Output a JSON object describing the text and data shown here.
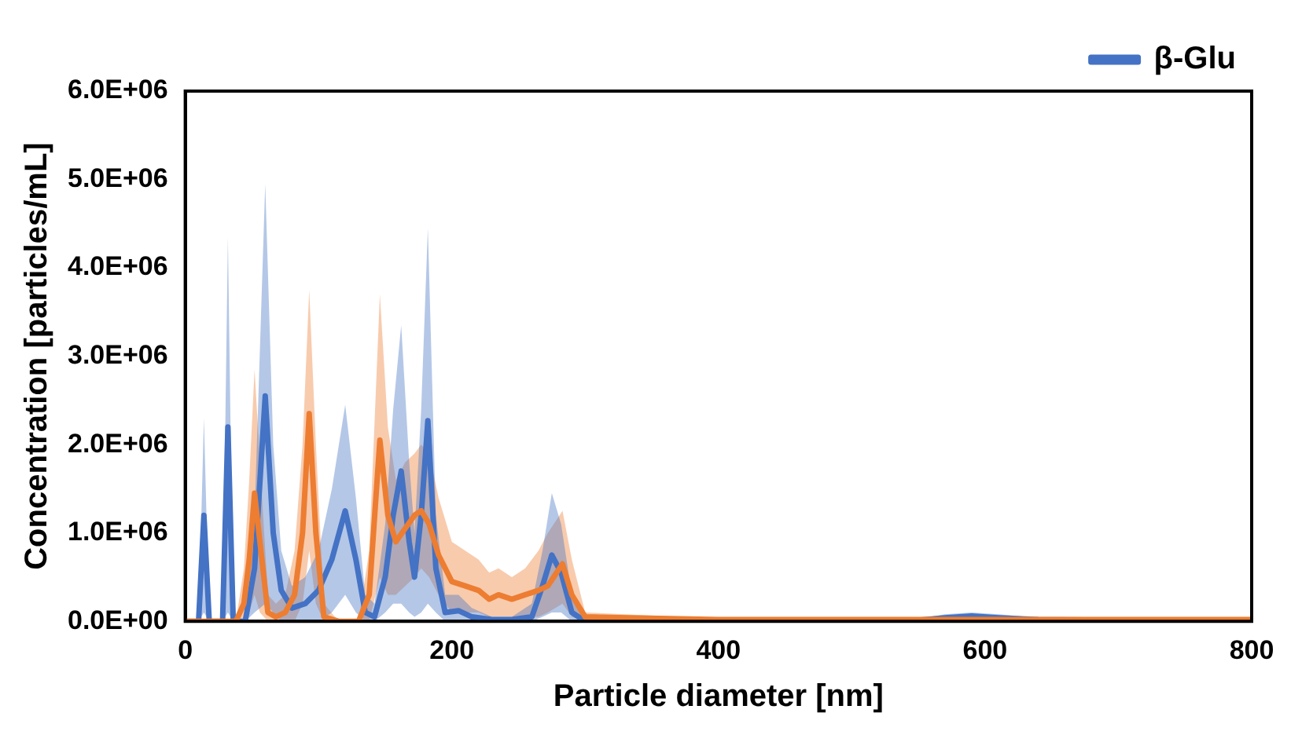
{
  "chart_data": {
    "type": "line",
    "xlabel": "Particle diameter [nm]",
    "ylabel": "Concentration [particles/mL]",
    "xlim": [
      0,
      800
    ],
    "xticks": [
      0,
      200,
      400,
      600,
      800
    ],
    "ylim": [
      0,
      6000000
    ],
    "yticks": [
      {
        "value": 0,
        "label": "0.0E+00"
      },
      {
        "value": 1000000,
        "label": "1.0E+06"
      },
      {
        "value": 2000000,
        "label": "2.0E+06"
      },
      {
        "value": 3000000,
        "label": "3.0E+06"
      },
      {
        "value": 4000000,
        "label": "4.0E+06"
      },
      {
        "value": 5000000,
        "label": "5.0E+06"
      },
      {
        "value": 6000000,
        "label": "6.0E+06"
      }
    ],
    "grid": false,
    "legend": "top right",
    "marker": "none",
    "line_style": "solid",
    "series": [
      {
        "name": "β-Glu",
        "color": "#4472c4",
        "x": [
          0,
          10,
          14,
          18,
          28,
          32,
          36,
          45,
          52,
          60,
          66,
          72,
          80,
          90,
          100,
          110,
          120,
          128,
          135,
          142,
          150,
          156,
          162,
          168,
          172,
          177,
          182,
          188,
          195,
          205,
          215,
          230,
          245,
          260,
          268,
          275,
          282,
          290,
          300,
          400,
          540,
          570,
          590,
          610,
          640,
          800
        ],
        "values": [
          0,
          0,
          1200000,
          0,
          0,
          2200000,
          0,
          0,
          600000,
          2550000,
          1000000,
          350000,
          150000,
          200000,
          350000,
          700000,
          1250000,
          700000,
          100000,
          50000,
          500000,
          1200000,
          1700000,
          900000,
          500000,
          1200000,
          2270000,
          600000,
          100000,
          120000,
          50000,
          20000,
          20000,
          50000,
          400000,
          750000,
          550000,
          100000,
          0,
          0,
          0,
          40000,
          60000,
          40000,
          20000,
          0
        ],
        "upper": [
          0,
          0,
          2300000,
          0,
          0,
          4350000,
          0,
          0,
          1200000,
          4950000,
          2000000,
          800000,
          400000,
          500000,
          800000,
          1500000,
          2450000,
          1400000,
          300000,
          200000,
          1100000,
          2400000,
          3350000,
          1800000,
          1000000,
          2400000,
          4450000,
          1200000,
          300000,
          300000,
          150000,
          50000,
          50000,
          200000,
          800000,
          1450000,
          1100000,
          300000,
          0,
          0,
          0,
          80000,
          100000,
          80000,
          40000,
          0
        ],
        "lower": [
          0,
          0,
          100000,
          0,
          0,
          100000,
          0,
          0,
          100000,
          200000,
          100000,
          0,
          0,
          0,
          0,
          100000,
          300000,
          100000,
          0,
          0,
          100000,
          200000,
          200000,
          100000,
          50000,
          100000,
          200000,
          100000,
          0,
          0,
          0,
          0,
          0,
          0,
          50000,
          100000,
          100000,
          0,
          0,
          0,
          0,
          0,
          20000,
          0,
          0,
          0
        ]
      },
      {
        "color": "#ed7d31",
        "x": [
          0,
          38,
          44,
          48,
          52,
          56,
          62,
          68,
          75,
          82,
          88,
          93,
          98,
          104,
          115,
          130,
          138,
          146,
          152,
          158,
          165,
          172,
          177,
          183,
          190,
          200,
          210,
          220,
          228,
          235,
          245,
          255,
          265,
          272,
          283,
          290,
          300,
          400,
          800
        ],
        "values": [
          0,
          0,
          200000,
          700000,
          1450000,
          900000,
          100000,
          50000,
          100000,
          300000,
          1000000,
          2350000,
          1000000,
          50000,
          0,
          0,
          300000,
          2050000,
          1200000,
          900000,
          1050000,
          1200000,
          1250000,
          1100000,
          750000,
          450000,
          400000,
          350000,
          250000,
          300000,
          250000,
          300000,
          350000,
          400000,
          650000,
          300000,
          50000,
          20000,
          20000
        ],
        "upper": [
          0,
          0,
          600000,
          1600000,
          2850000,
          1800000,
          300000,
          200000,
          300000,
          800000,
          2000000,
          3750000,
          2000000,
          200000,
          0,
          0,
          800000,
          3700000,
          2200000,
          1600000,
          1800000,
          1900000,
          2000000,
          1900000,
          1400000,
          900000,
          800000,
          700000,
          550000,
          600000,
          500000,
          600000,
          800000,
          1000000,
          1250000,
          700000,
          100000,
          30000,
          30000
        ],
        "lower": [
          0,
          0,
          0,
          100000,
          300000,
          100000,
          0,
          0,
          0,
          0,
          200000,
          800000,
          200000,
          0,
          0,
          0,
          0,
          500000,
          300000,
          300000,
          400000,
          500000,
          600000,
          500000,
          300000,
          100000,
          100000,
          100000,
          50000,
          50000,
          50000,
          50000,
          50000,
          100000,
          200000,
          50000,
          0,
          10000,
          10000
        ]
      }
    ]
  }
}
